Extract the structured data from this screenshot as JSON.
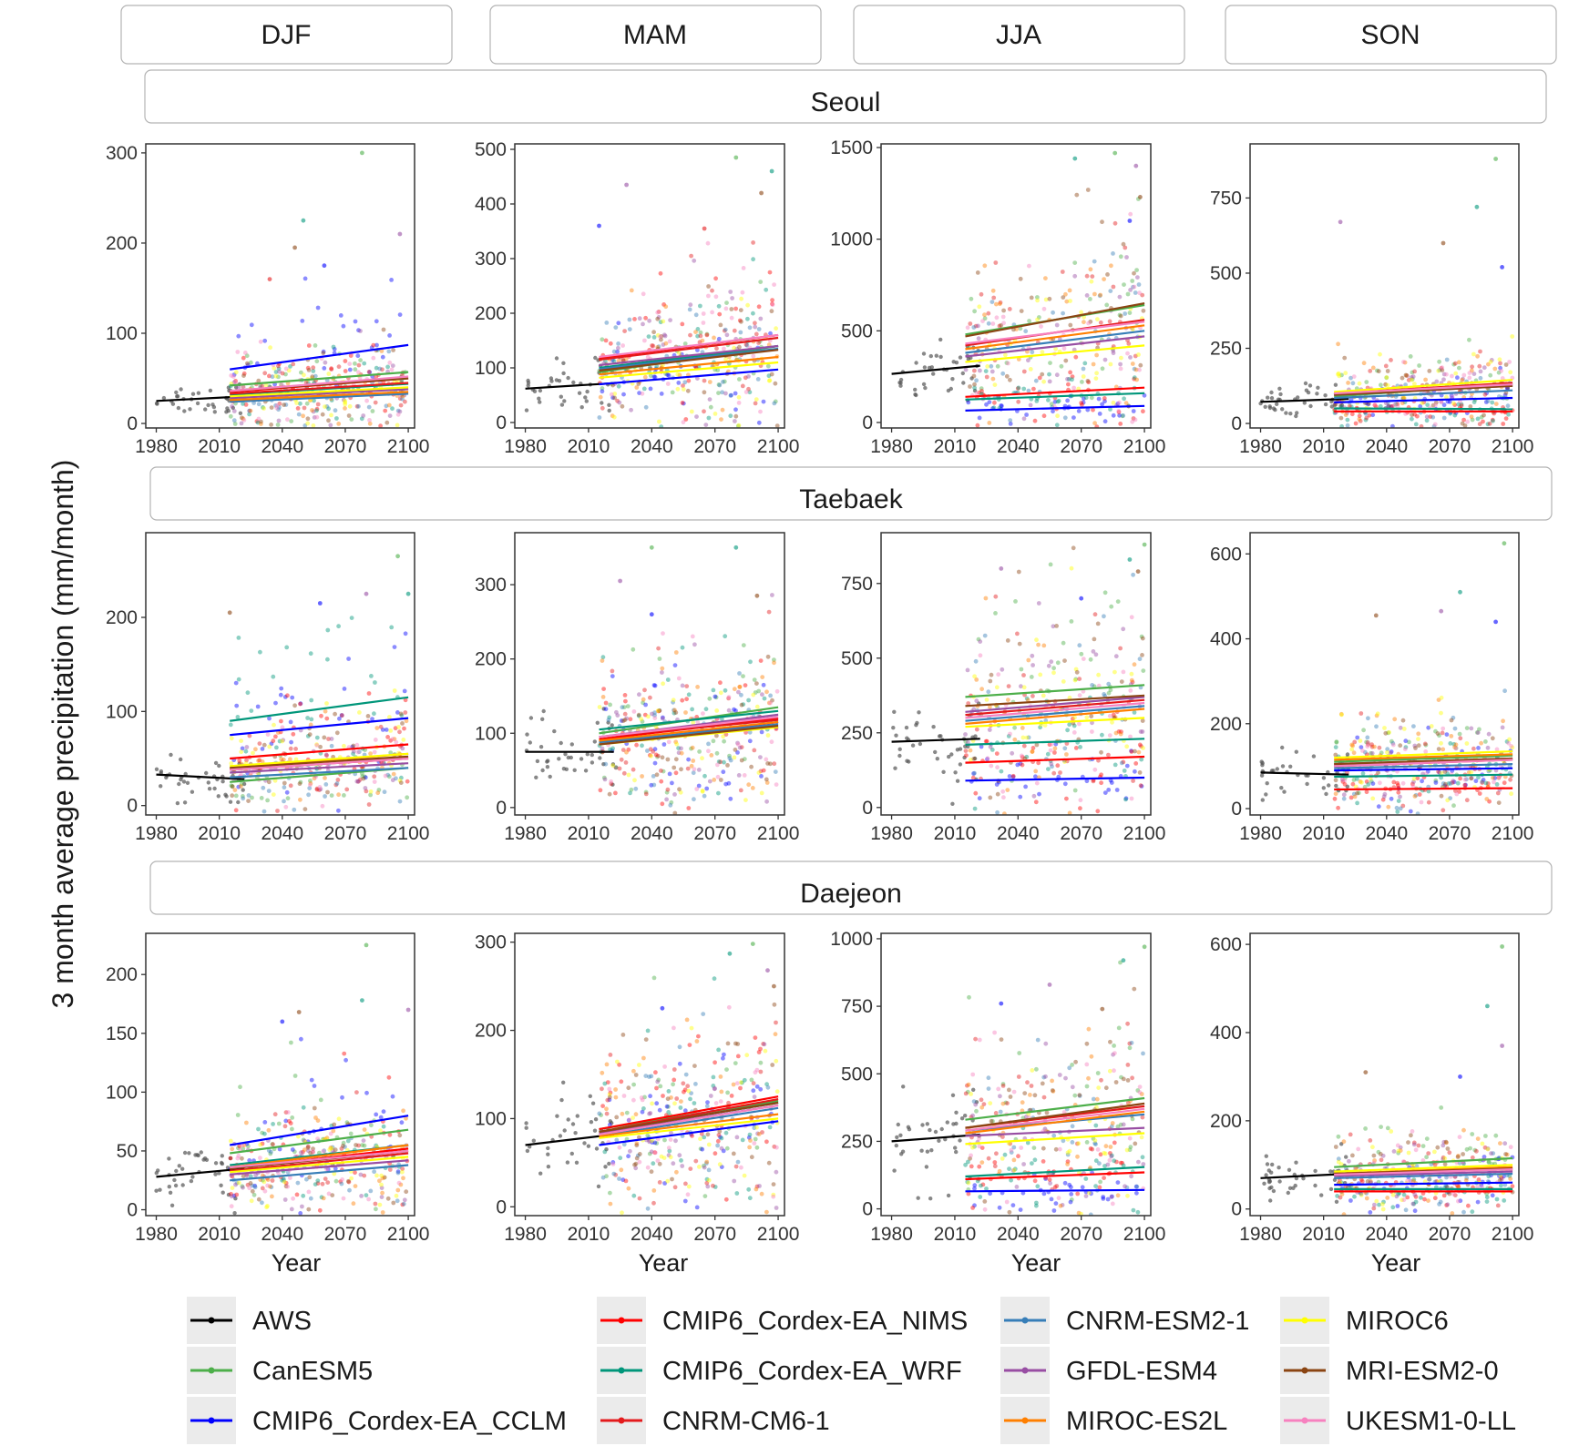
{
  "chart_data": {
    "type": "scatter",
    "title": "",
    "ylabel": "3 month average precipitation (mm/month)",
    "xlabel": "Year",
    "xlim": [
      1975,
      2103
    ],
    "x_ticks": [
      1980,
      2010,
      2040,
      2070,
      2100
    ],
    "seasons": [
      "DJF",
      "MAM",
      "JJA",
      "SON"
    ],
    "cities": [
      "Seoul",
      "Taebaek",
      "Daejeon"
    ],
    "series": [
      {
        "name": "AWS",
        "color": "#000000"
      },
      {
        "name": "CanESM5",
        "color": "#4daf4a"
      },
      {
        "name": "CMIP6_Cordex-EA_CCLM",
        "color": "#0000ff"
      },
      {
        "name": "CMIP6_Cordex-EA_NIMS",
        "color": "#ff0000"
      },
      {
        "name": "CMIP6_Cordex-EA_WRF",
        "color": "#00967a"
      },
      {
        "name": "CNRM-CM6-1",
        "color": "#e41a1c"
      },
      {
        "name": "CNRM-ESM2-1",
        "color": "#377eb8"
      },
      {
        "name": "GFDL-ESM4",
        "color": "#984ea3"
      },
      {
        "name": "MIROC-ES2L",
        "color": "#ff7f00"
      },
      {
        "name": "MIROC6",
        "color": "#ffff00"
      },
      {
        "name": "MRI-ESM2-0",
        "color": "#8b4513"
      },
      {
        "name": "UKESM1-0-LL",
        "color": "#f781bf"
      }
    ],
    "panels": [
      {
        "city": "Seoul",
        "season": "DJF",
        "ylim": [
          -5,
          310
        ],
        "yticks": [
          0,
          100,
          200,
          300
        ],
        "trends": {
          "AWS": [
            25,
            30
          ],
          "CanESM5": [
            42,
            57
          ],
          "CMIP6_Cordex-EA_CCLM": [
            60,
            87
          ],
          "CMIP6_Cordex-EA_NIMS": [
            35,
            50
          ],
          "CMIP6_Cordex-EA_WRF": [
            32,
            44
          ],
          "CNRM-CM6-1": [
            33,
            45
          ],
          "CNRM-ESM2-1": [
            24,
            33
          ],
          "GFDL-ESM4": [
            28,
            38
          ],
          "MIROC-ES2L": [
            26,
            35
          ],
          "MIROC6": [
            30,
            40
          ],
          "MRI-ESM2-0": [
            36,
            50
          ],
          "UKESM1-0-LL": [
            36,
            52
          ]
        },
        "outliers": [
          [
            2078,
            300
          ],
          [
            2050,
            225
          ],
          [
            2096,
            210
          ],
          [
            2046,
            195
          ],
          [
            2060,
            175
          ],
          [
            2034,
            160
          ]
        ]
      },
      {
        "city": "Seoul",
        "season": "MAM",
        "ylim": [
          -10,
          510
        ],
        "yticks": [
          0,
          100,
          200,
          300,
          400,
          500
        ],
        "trends": {
          "AWS": [
            62,
            72
          ],
          "CanESM5": [
            92,
            140
          ],
          "CMIP6_Cordex-EA_CCLM": [
            70,
            97
          ],
          "CMIP6_Cordex-EA_NIMS": [
            118,
            160
          ],
          "CMIP6_Cordex-EA_WRF": [
            100,
            140
          ],
          "CNRM-CM6-1": [
            115,
            155
          ],
          "CNRM-ESM2-1": [
            98,
            135
          ],
          "GFDL-ESM4": [
            105,
            140
          ],
          "MIROC-ES2L": [
            88,
            120
          ],
          "MIROC6": [
            82,
            110
          ],
          "MRI-ESM2-0": [
            95,
            133
          ],
          "UKESM1-0-LL": [
            120,
            160
          ]
        },
        "outliers": [
          [
            2080,
            485
          ],
          [
            2097,
            460
          ],
          [
            2028,
            435
          ],
          [
            2092,
            420
          ],
          [
            2015,
            360
          ],
          [
            2065,
            355
          ]
        ]
      },
      {
        "city": "Seoul",
        "season": "JJA",
        "ylim": [
          -30,
          1520
        ],
        "yticks": [
          0,
          500,
          1000,
          1500
        ],
        "trends": {
          "AWS": [
            265,
            310
          ],
          "CanESM5": [
            480,
            640
          ],
          "CMIP6_Cordex-EA_CCLM": [
            65,
            90
          ],
          "CMIP6_Cordex-EA_NIMS": [
            140,
            190
          ],
          "CMIP6_Cordex-EA_WRF": [
            125,
            160
          ],
          "CNRM-CM6-1": [
            420,
            560
          ],
          "CNRM-ESM2-1": [
            380,
            500
          ],
          "GFDL-ESM4": [
            360,
            470
          ],
          "MIROC-ES2L": [
            400,
            530
          ],
          "MIROC6": [
            330,
            420
          ],
          "MRI-ESM2-0": [
            470,
            650
          ],
          "UKESM1-0-LL": [
            430,
            550
          ]
        },
        "outliers": [
          [
            2086,
            1470
          ],
          [
            2067,
            1440
          ],
          [
            2096,
            1400
          ],
          [
            2098,
            1230
          ],
          [
            2093,
            1100
          ]
        ]
      },
      {
        "city": "Seoul",
        "season": "SON",
        "ylim": [
          -15,
          930
        ],
        "yticks": [
          0,
          250,
          500,
          750
        ],
        "trends": {
          "AWS": [
            72,
            82
          ],
          "CanESM5": [
            90,
            130
          ],
          "CMIP6_Cordex-EA_CCLM": [
            70,
            85
          ],
          "CMIP6_Cordex-EA_NIMS": [
            40,
            40
          ],
          "CMIP6_Cordex-EA_WRF": [
            50,
            48
          ],
          "CNRM-CM6-1": [
            100,
            135
          ],
          "CNRM-ESM2-1": [
            85,
            110
          ],
          "GFDL-ESM4": [
            95,
            125
          ],
          "MIROC-ES2L": [
            100,
            130
          ],
          "MIROC6": [
            105,
            145
          ],
          "MRI-ESM2-0": [
            95,
            125
          ],
          "UKESM1-0-LL": [
            100,
            130
          ]
        },
        "outliers": [
          [
            2092,
            880
          ],
          [
            2083,
            720
          ],
          [
            2018,
            670
          ],
          [
            2067,
            600
          ],
          [
            2095,
            520
          ]
        ]
      },
      {
        "city": "Taebaek",
        "season": "DJF",
        "ylim": [
          -10,
          290
        ],
        "yticks": [
          0,
          100,
          200
        ],
        "trends": {
          "AWS": [
            33,
            28
          ],
          "CanESM5": [
            25,
            40
          ],
          "CMIP6_Cordex-EA_CCLM": [
            75,
            93
          ],
          "CMIP6_Cordex-EA_NIMS": [
            50,
            65
          ],
          "CMIP6_Cordex-EA_WRF": [
            90,
            115
          ],
          "CNRM-CM6-1": [
            38,
            50
          ],
          "CNRM-ESM2-1": [
            30,
            40
          ],
          "GFDL-ESM4": [
            35,
            45
          ],
          "MIROC-ES2L": [
            40,
            55
          ],
          "MIROC6": [
            42,
            55
          ],
          "MRI-ESM2-0": [
            40,
            52
          ],
          "UKESM1-0-LL": [
            38,
            50
          ]
        },
        "outliers": [
          [
            2095,
            265
          ],
          [
            2100,
            225
          ],
          [
            2080,
            225
          ],
          [
            2015,
            205
          ],
          [
            2058,
            215
          ]
        ]
      },
      {
        "city": "Taebaek",
        "season": "MAM",
        "ylim": [
          -10,
          370
        ],
        "yticks": [
          0,
          100,
          200,
          300
        ],
        "trends": {
          "AWS": [
            75,
            75
          ],
          "CanESM5": [
            100,
            135
          ],
          "CMIP6_Cordex-EA_CCLM": [
            85,
            115
          ],
          "CMIP6_Cordex-EA_NIMS": [
            92,
            120
          ],
          "CMIP6_Cordex-EA_WRF": [
            105,
            130
          ],
          "CNRM-CM6-1": [
            95,
            118
          ],
          "CNRM-ESM2-1": [
            88,
            112
          ],
          "GFDL-ESM4": [
            95,
            125
          ],
          "MIROC-ES2L": [
            90,
            115
          ],
          "MIROC6": [
            85,
            108
          ],
          "MRI-ESM2-0": [
            85,
            110
          ],
          "UKESM1-0-LL": [
            95,
            122
          ]
        },
        "outliers": [
          [
            2040,
            350
          ],
          [
            2080,
            350
          ],
          [
            2025,
            305
          ],
          [
            2090,
            285
          ],
          [
            2040,
            260
          ]
        ]
      },
      {
        "city": "Taebaek",
        "season": "JJA",
        "ylim": [
          -25,
          920
        ],
        "yticks": [
          0,
          250,
          500,
          750
        ],
        "trends": {
          "AWS": [
            220,
            230
          ],
          "CanESM5": [
            370,
            410
          ],
          "CMIP6_Cordex-EA_CCLM": [
            90,
            100
          ],
          "CMIP6_Cordex-EA_NIMS": [
            150,
            170
          ],
          "CMIP6_Cordex-EA_WRF": [
            210,
            230
          ],
          "CNRM-CM6-1": [
            310,
            360
          ],
          "CNRM-ESM2-1": [
            290,
            340
          ],
          "GFDL-ESM4": [
            320,
            370
          ],
          "MIROC-ES2L": [
            280,
            330
          ],
          "MIROC6": [
            270,
            300
          ],
          "MRI-ESM2-0": [
            340,
            375
          ],
          "UKESM1-0-LL": [
            300,
            350
          ]
        },
        "outliers": [
          [
            2100,
            880
          ],
          [
            2093,
            830
          ],
          [
            2032,
            800
          ],
          [
            2097,
            790
          ],
          [
            2070,
            700
          ]
        ]
      },
      {
        "city": "Taebaek",
        "season": "SON",
        "ylim": [
          -15,
          650
        ],
        "yticks": [
          0,
          200,
          400,
          600
        ],
        "trends": {
          "AWS": [
            85,
            80
          ],
          "CanESM5": [
            110,
            125
          ],
          "CMIP6_Cordex-EA_CCLM": [
            90,
            95
          ],
          "CMIP6_Cordex-EA_NIMS": [
            45,
            48
          ],
          "CMIP6_Cordex-EA_WRF": [
            75,
            80
          ],
          "CNRM-CM6-1": [
            100,
            115
          ],
          "CNRM-ESM2-1": [
            95,
            105
          ],
          "GFDL-ESM4": [
            105,
            118
          ],
          "MIROC-ES2L": [
            115,
            128
          ],
          "MIROC6": [
            120,
            135
          ],
          "MRI-ESM2-0": [
            105,
            118
          ],
          "UKESM1-0-LL": [
            100,
            115
          ]
        },
        "outliers": [
          [
            2096,
            625
          ],
          [
            2075,
            510
          ],
          [
            2066,
            465
          ],
          [
            2035,
            455
          ],
          [
            2092,
            440
          ]
        ]
      },
      {
        "city": "Daejeon",
        "season": "DJF",
        "ylim": [
          -5,
          235
        ],
        "yticks": [
          0,
          50,
          100,
          150,
          200
        ],
        "trends": {
          "AWS": [
            28,
            35
          ],
          "CanESM5": [
            48,
            68
          ],
          "CMIP6_Cordex-EA_CCLM": [
            55,
            80
          ],
          "CMIP6_Cordex-EA_NIMS": [
            35,
            52
          ],
          "CMIP6_Cordex-EA_WRF": [
            38,
            55
          ],
          "CNRM-CM6-1": [
            33,
            48
          ],
          "CNRM-ESM2-1": [
            25,
            38
          ],
          "GFDL-ESM4": [
            30,
            42
          ],
          "MIROC-ES2L": [
            36,
            55
          ],
          "MIROC6": [
            32,
            45
          ],
          "MRI-ESM2-0": [
            35,
            50
          ],
          "UKESM1-0-LL": [
            36,
            50
          ]
        },
        "outliers": [
          [
            2080,
            225
          ],
          [
            2078,
            178
          ],
          [
            2100,
            170
          ],
          [
            2048,
            168
          ],
          [
            2040,
            160
          ]
        ]
      },
      {
        "city": "Daejeon",
        "season": "MAM",
        "ylim": [
          -10,
          310
        ],
        "yticks": [
          0,
          100,
          200,
          300
        ],
        "trends": {
          "AWS": [
            70,
            82
          ],
          "CanESM5": [
            88,
            120
          ],
          "CMIP6_Cordex-EA_CCLM": [
            70,
            97
          ],
          "CMIP6_Cordex-EA_NIMS": [
            88,
            125
          ],
          "CMIP6_Cordex-EA_WRF": [
            85,
            118
          ],
          "CNRM-CM6-1": [
            85,
            122
          ],
          "CNRM-ESM2-1": [
            80,
            112
          ],
          "GFDL-ESM4": [
            83,
            115
          ],
          "MIROC-ES2L": [
            80,
            105
          ],
          "MIROC6": [
            78,
            100
          ],
          "MRI-ESM2-0": [
            85,
            118
          ],
          "UKESM1-0-LL": [
            82,
            115
          ]
        },
        "outliers": [
          [
            2088,
            298
          ],
          [
            2077,
            287
          ],
          [
            2095,
            268
          ],
          [
            2098,
            250
          ],
          [
            2045,
            225
          ]
        ]
      },
      {
        "city": "Daejeon",
        "season": "JJA",
        "ylim": [
          -25,
          1020
        ],
        "yticks": [
          0,
          250,
          500,
          750,
          1000
        ],
        "trends": {
          "AWS": [
            250,
            275
          ],
          "CanESM5": [
            330,
            410
          ],
          "CMIP6_Cordex-EA_CCLM": [
            65,
            70
          ],
          "CMIP6_Cordex-EA_NIMS": [
            110,
            135
          ],
          "CMIP6_Cordex-EA_WRF": [
            120,
            155
          ],
          "CNRM-CM6-1": [
            300,
            380
          ],
          "CNRM-ESM2-1": [
            290,
            350
          ],
          "GFDL-ESM4": [
            270,
            300
          ],
          "MIROC-ES2L": [
            280,
            360
          ],
          "MIROC6": [
            240,
            280
          ],
          "MRI-ESM2-0": [
            300,
            390
          ],
          "UKESM1-0-LL": [
            290,
            370
          ]
        },
        "outliers": [
          [
            2100,
            970
          ],
          [
            2090,
            920
          ],
          [
            2055,
            830
          ],
          [
            2080,
            740
          ],
          [
            2032,
            760
          ]
        ]
      },
      {
        "city": "Daejeon",
        "season": "SON",
        "ylim": [
          -15,
          625
        ],
        "yticks": [
          0,
          200,
          400,
          600
        ],
        "trends": {
          "AWS": [
            70,
            80
          ],
          "CanESM5": [
            95,
            115
          ],
          "CMIP6_Cordex-EA_CCLM": [
            55,
            60
          ],
          "CMIP6_Cordex-EA_NIMS": [
            40,
            40
          ],
          "CMIP6_Cordex-EA_WRF": [
            45,
            45
          ],
          "CNRM-CM6-1": [
            80,
            90
          ],
          "CNRM-ESM2-1": [
            70,
            80
          ],
          "GFDL-ESM4": [
            75,
            85
          ],
          "MIROC-ES2L": [
            80,
            95
          ],
          "MIROC6": [
            85,
            100
          ],
          "MRI-ESM2-0": [
            80,
            92
          ],
          "UKESM1-0-LL": [
            78,
            90
          ]
        },
        "outliers": [
          [
            2095,
            595
          ],
          [
            2088,
            460
          ],
          [
            2095,
            370
          ],
          [
            2030,
            310
          ],
          [
            2075,
            300
          ]
        ]
      }
    ]
  }
}
